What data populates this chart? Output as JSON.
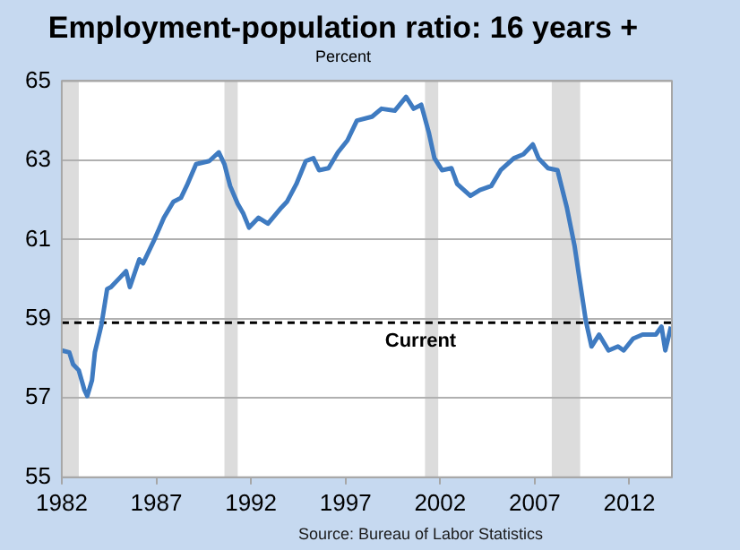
{
  "chart_data": {
    "type": "line",
    "title": "Employment-population ratio: 16 years +",
    "subtitle": "Percent",
    "x": [
      1982.0,
      1982.4,
      1982.6,
      1982.9,
      1983.2,
      1983.35,
      1983.6,
      1983.75,
      1984.1,
      1984.4,
      1984.6,
      1985.1,
      1985.4,
      1985.6,
      1986.1,
      1986.3,
      1986.9,
      1987.4,
      1987.9,
      1988.3,
      1988.6,
      1989.1,
      1989.8,
      1990.3,
      1990.6,
      1990.9,
      1991.3,
      1991.6,
      1991.9,
      1992.4,
      1992.9,
      1993.6,
      1993.9,
      1994.4,
      1994.9,
      1995.3,
      1995.6,
      1996.1,
      1996.6,
      1997.1,
      1997.6,
      1998.4,
      1998.9,
      1999.6,
      2000.2,
      2000.6,
      2001.0,
      2001.4,
      2001.7,
      2002.1,
      2002.6,
      2002.9,
      2003.6,
      2004.1,
      2004.7,
      2005.2,
      2005.9,
      2006.4,
      2006.9,
      2007.2,
      2007.7,
      2008.2,
      2008.7,
      2009.1,
      2009.4,
      2009.7,
      2010.0,
      2010.4,
      2010.9,
      2011.4,
      2011.7,
      2012.2,
      2012.7,
      2013.4,
      2013.7,
      2013.9,
      2014.2
    ],
    "series": [
      {
        "color": "#3f7bc1",
        "values": [
          58.2,
          58.15,
          57.85,
          57.7,
          57.2,
          57.05,
          57.45,
          58.15,
          58.85,
          59.75,
          59.8,
          60.05,
          60.2,
          59.8,
          60.5,
          60.4,
          61.0,
          61.55,
          61.95,
          62.05,
          62.35,
          62.9,
          62.98,
          63.2,
          62.9,
          62.35,
          61.9,
          61.65,
          61.3,
          61.55,
          61.4,
          61.8,
          61.95,
          62.4,
          62.98,
          63.05,
          62.75,
          62.8,
          63.2,
          63.5,
          64.0,
          64.1,
          64.3,
          64.25,
          64.6,
          64.3,
          64.4,
          63.7,
          63.05,
          62.75,
          62.8,
          62.4,
          62.1,
          62.25,
          62.35,
          62.75,
          63.05,
          63.15,
          63.4,
          63.05,
          62.8,
          62.75,
          61.8,
          60.85,
          59.9,
          58.95,
          58.3,
          58.6,
          58.2,
          58.3,
          58.2,
          58.5,
          58.6,
          58.6,
          58.8,
          58.2,
          58.8
        ]
      }
    ],
    "xlim": [
      1982,
      2014.25
    ],
    "xticks": [
      1982,
      1987,
      1992,
      1997,
      2002,
      2007,
      2012
    ],
    "ylim": [
      55,
      65
    ],
    "yticks": [
      55,
      57,
      59,
      61,
      63,
      65
    ],
    "grid": "y",
    "marker": "none",
    "line_style": "solid",
    "legend": false,
    "ref_lines": [
      {
        "axis": "y",
        "value": 58.9,
        "label": "Current",
        "color": "#000000",
        "line_style": "dashed"
      }
    ],
    "bands": [
      {
        "axis": "x",
        "from": 1982,
        "to": 1982.9,
        "color": "#dcdcdc"
      },
      {
        "axis": "x",
        "from": 1990.6,
        "to": 1991.3,
        "color": "#dcdcdc"
      },
      {
        "axis": "x",
        "from": 2001.2,
        "to": 2001.9,
        "color": "#dcdcdc"
      },
      {
        "axis": "x",
        "from": 2007.9,
        "to": 2009.4,
        "color": "#dcdcdc"
      }
    ],
    "annotations": [
      "Source: Bureau of Labor Statistics"
    ]
  }
}
